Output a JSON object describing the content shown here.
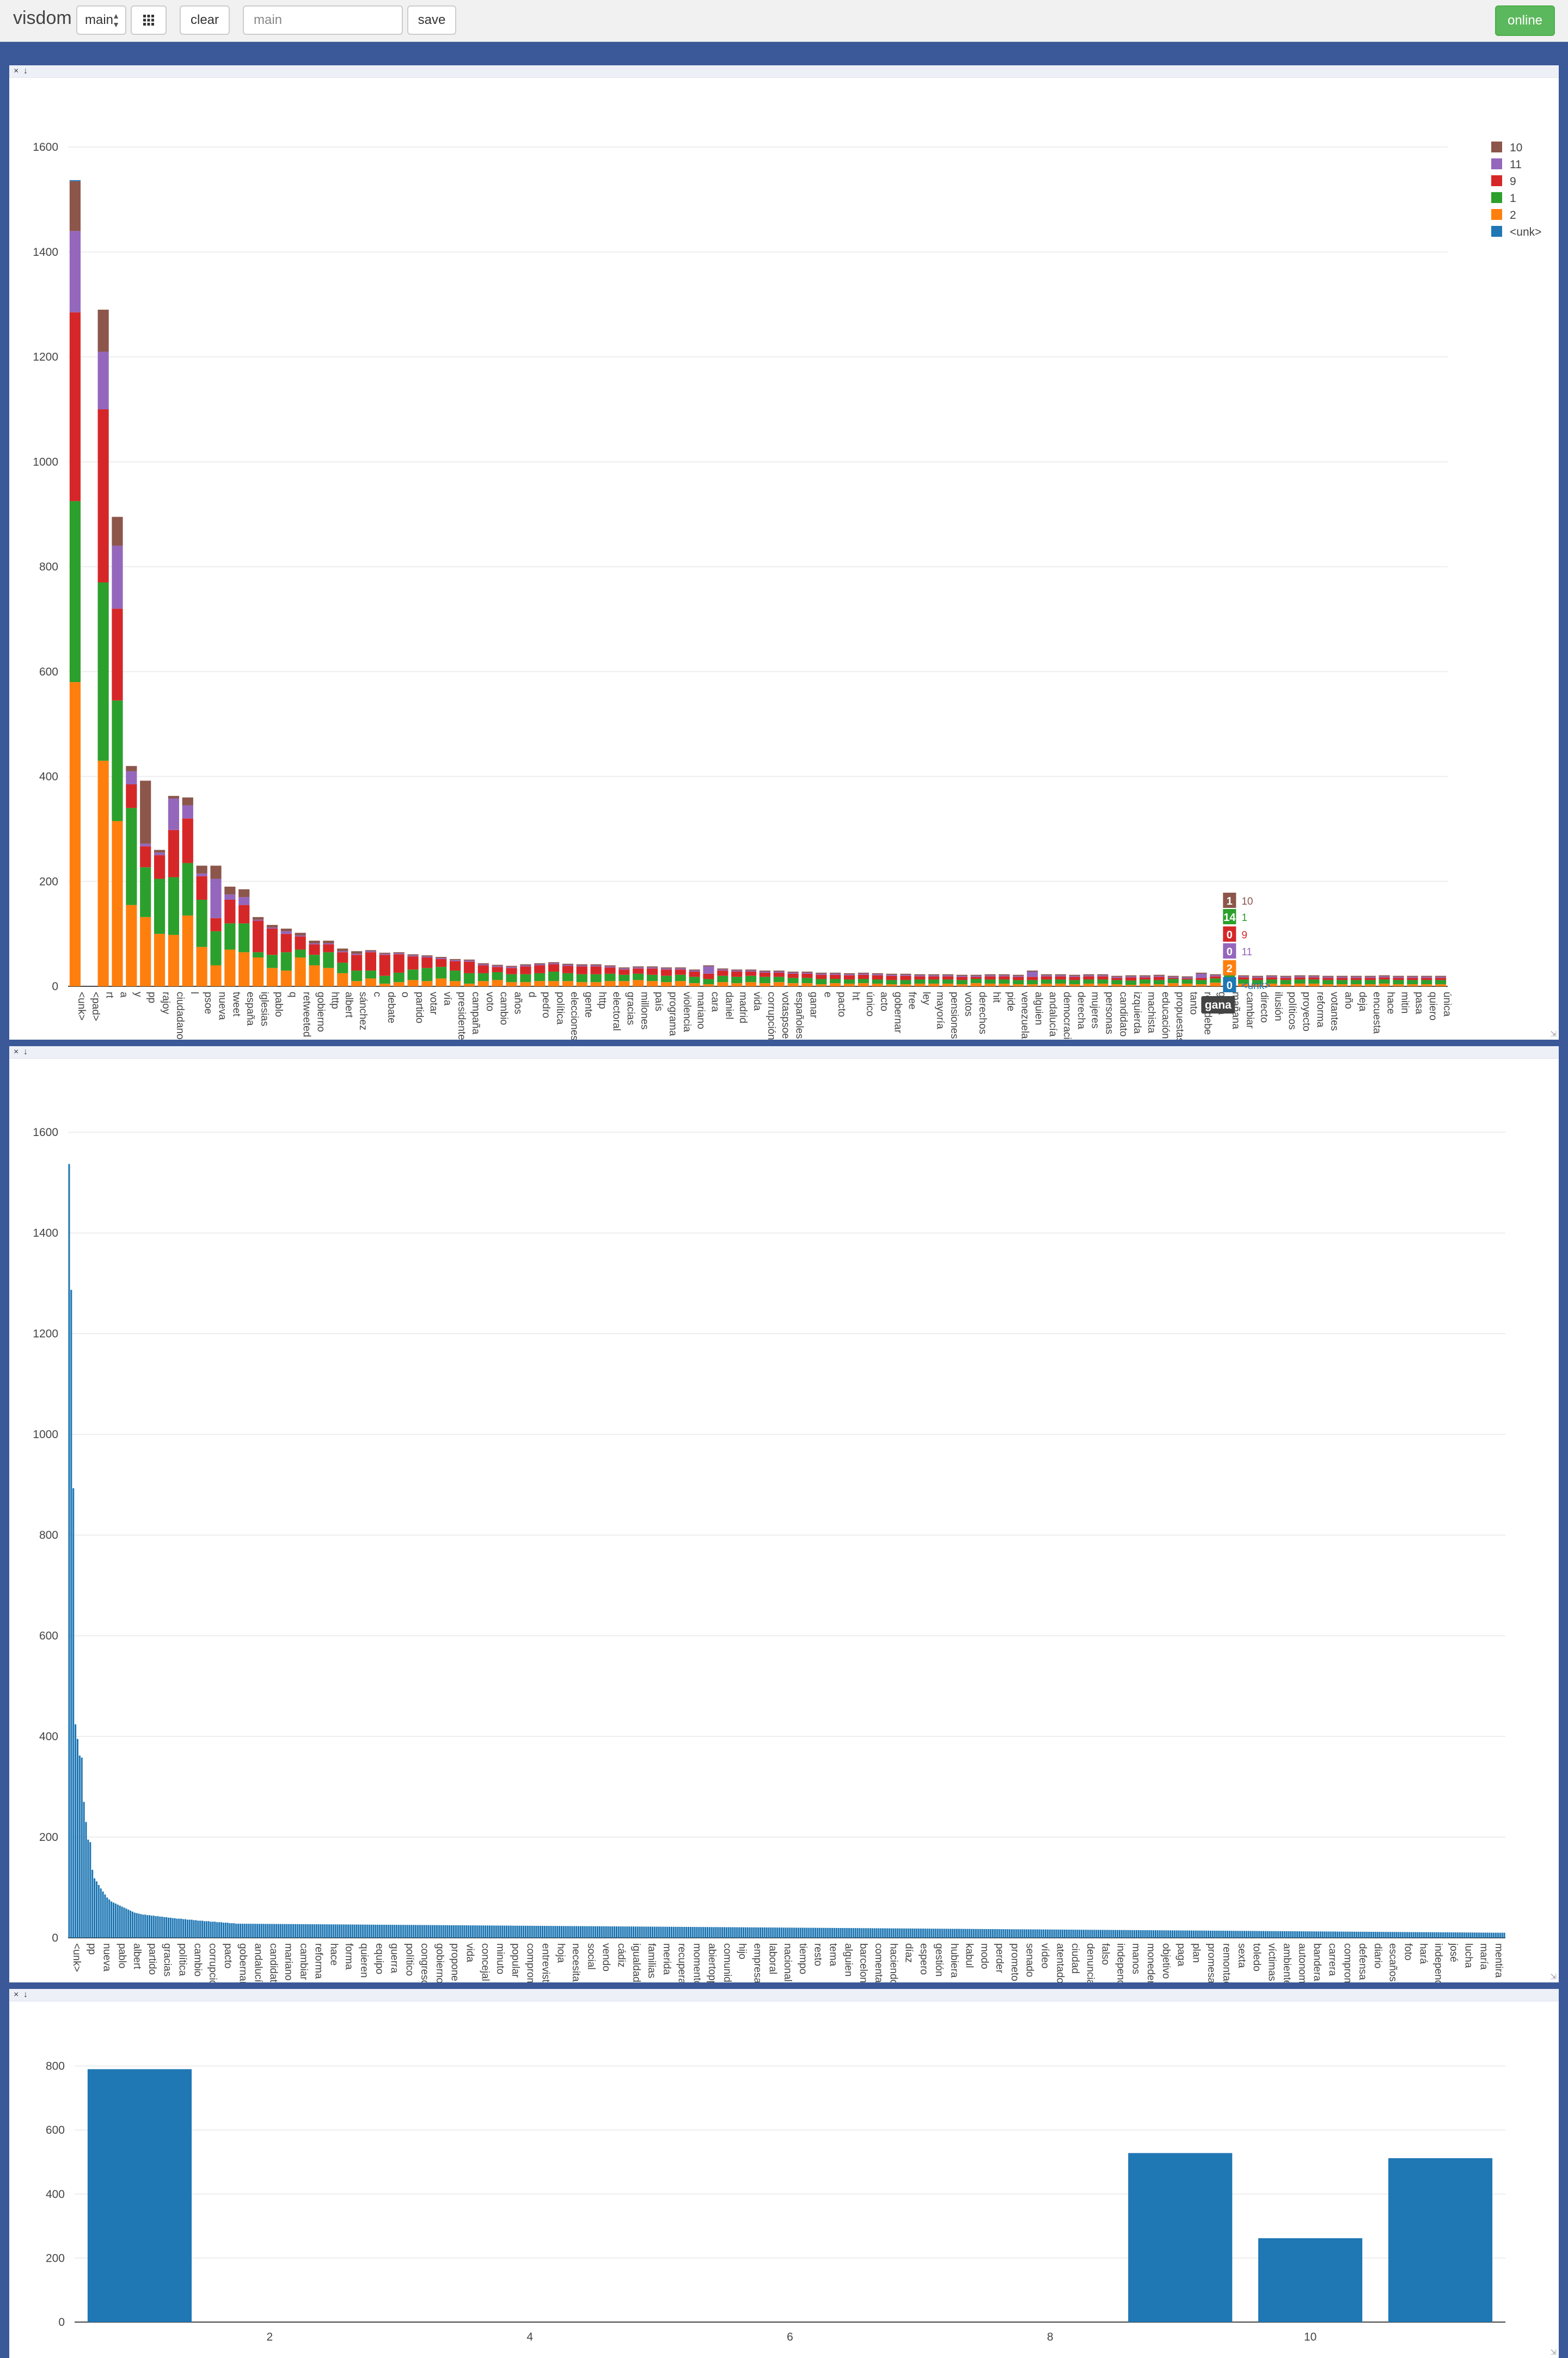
{
  "toolbar": {
    "brand": "visdom",
    "env_select": "main",
    "clear_label": "clear",
    "env_input_placeholder": "main",
    "save_label": "save",
    "status": "online",
    "icons": [
      "grid-icon",
      "close-icon",
      "download-icon",
      "resize-icon"
    ]
  },
  "pane_controls": {
    "close": "×",
    "download": "↓",
    "resize": "⇲"
  },
  "colors": {
    "page_bg": "#3b5998",
    "c2": "#ff7f0e",
    "c1": "#2ca02c",
    "c9": "#d62728",
    "c11": "#9467bd",
    "c10": "#8c564b",
    "cunk": "#1f77b4"
  },
  "chart_data": [
    {
      "type": "bar",
      "stacked": true,
      "legend_placement": "top-right",
      "grid": true,
      "ylim": [
        0,
        1650
      ],
      "yticks": [
        0,
        200,
        400,
        600,
        800,
        1000,
        1200,
        1400,
        1600
      ],
      "categories": [
        "<unk>",
        "<pad>",
        "rt",
        "a",
        "y",
        "pp",
        "rajoy",
        "ciudadanos",
        "l",
        "psoe",
        "nueva",
        "tweet",
        "españa",
        "iglesias",
        "pablo",
        "q",
        "retweeted",
        "gobierno",
        "http",
        "albert",
        "sánchez",
        "c",
        "debate",
        "o",
        "partido",
        "votar",
        "vía",
        "presidente",
        "campaña",
        "voto",
        "cambio",
        "años",
        "d",
        "pedro",
        "política",
        "elecciones",
        "gente",
        "http",
        "electoral",
        "gracias",
        "millones",
        "país",
        "programa",
        "violencia",
        "mariano",
        "cara",
        "daniel",
        "madrid",
        "vida",
        "corrupción",
        "votaspsoe",
        "españoles",
        "ganar",
        "e",
        "pacto",
        "ht",
        "único",
        "acto",
        "gobernar",
        "free",
        "ley",
        "mayoría",
        "pensiones",
        "votos",
        "derechos",
        "hit",
        "pide",
        "venezuela",
        "alguien",
        "andalucía",
        "democracia",
        "derecha",
        "mujeres",
        "personas",
        "candidato",
        "izquierda",
        "machista",
        "educación",
        "propuestas",
        "tanto",
        "rosadebe",
        "gana",
        "mañana",
        "cambiar",
        "directo",
        "ilusión",
        "políticos",
        "proyecto",
        "reforma",
        "votantes",
        "año",
        "deja",
        "encuesta",
        "hace",
        "mitin",
        "pasa",
        "quiero",
        "única"
      ],
      "series": [
        {
          "name": "2",
          "values": [
            580,
            0,
            430,
            315,
            155,
            132,
            100,
            98,
            135,
            75,
            40,
            70,
            65,
            55,
            35,
            30,
            55,
            40,
            35,
            25,
            10,
            15,
            5,
            8,
            12,
            10,
            15,
            10,
            5,
            10,
            12,
            8,
            8,
            10,
            10,
            10,
            8,
            8,
            10,
            10,
            12,
            10,
            8,
            10,
            6,
            4,
            8,
            6,
            8,
            6,
            8,
            6,
            6,
            4,
            6,
            5,
            6,
            5,
            4,
            4,
            5,
            5,
            5,
            4,
            6,
            5,
            5,
            4,
            4,
            5,
            5,
            4,
            5,
            5,
            4,
            3,
            5,
            4,
            6,
            5,
            4,
            7,
            10,
            5,
            4,
            5,
            4,
            5,
            5,
            4,
            4,
            4,
            4,
            5,
            4,
            4,
            4,
            4
          ]
        },
        {
          "name": "1",
          "values": [
            345,
            0,
            340,
            230,
            185,
            95,
            105,
            110,
            100,
            90,
            65,
            50,
            55,
            10,
            25,
            35,
            15,
            20,
            30,
            20,
            20,
            15,
            15,
            18,
            20,
            25,
            22,
            20,
            20,
            15,
            15,
            15,
            15,
            15,
            18,
            15,
            15,
            15,
            14,
            12,
            12,
            12,
            12,
            12,
            12,
            10,
            12,
            12,
            12,
            12,
            10,
            10,
            10,
            10,
            8,
            8,
            8,
            8,
            8,
            8,
            8,
            8,
            8,
            8,
            8,
            8,
            8,
            8,
            8,
            8,
            8,
            8,
            8,
            8,
            8,
            8,
            8,
            8,
            8,
            8,
            8,
            8,
            14,
            8,
            8,
            8,
            8,
            8,
            8,
            8,
            8,
            8,
            8,
            8,
            8,
            8,
            8,
            8
          ]
        },
        {
          "name": "9",
          "values": [
            360,
            0,
            330,
            175,
            45,
            40,
            45,
            90,
            85,
            45,
            25,
            45,
            35,
            60,
            50,
            35,
            25,
            20,
            15,
            20,
            30,
            35,
            40,
            35,
            25,
            20,
            15,
            18,
            22,
            15,
            10,
            12,
            15,
            15,
            14,
            14,
            15,
            15,
            12,
            10,
            10,
            12,
            12,
            10,
            10,
            10,
            10,
            10,
            8,
            8,
            8,
            8,
            8,
            8,
            8,
            8,
            8,
            8,
            8,
            8,
            6,
            6,
            6,
            6,
            4,
            6,
            6,
            6,
            6,
            6,
            6,
            6,
            6,
            6,
            4,
            6,
            4,
            6,
            2,
            2,
            4,
            4,
            0,
            4,
            4,
            4,
            4,
            4,
            4,
            4,
            4,
            4,
            4,
            4,
            4,
            4,
            4,
            4
          ]
        },
        {
          "name": "11",
          "values": [
            155,
            0,
            110,
            120,
            25,
            5,
            5,
            60,
            25,
            5,
            75,
            10,
            15,
            2,
            2,
            5,
            2,
            2,
            2,
            2,
            2,
            2,
            2,
            2,
            2,
            2,
            2,
            2,
            2,
            2,
            2,
            2,
            2,
            2,
            2,
            2,
            2,
            2,
            2,
            2,
            2,
            2,
            2,
            2,
            2,
            14,
            2,
            2,
            2,
            2,
            2,
            2,
            2,
            2,
            2,
            2,
            2,
            2,
            2,
            2,
            2,
            2,
            2,
            2,
            2,
            2,
            2,
            2,
            10,
            2,
            2,
            2,
            2,
            2,
            2,
            2,
            2,
            2,
            2,
            2,
            8,
            2,
            0,
            2,
            2,
            2,
            2,
            2,
            2,
            2,
            2,
            2,
            2,
            2,
            2,
            2,
            2,
            2
          ]
        },
        {
          "name": "10",
          "values": [
            95,
            0,
            80,
            55,
            10,
            120,
            5,
            5,
            15,
            15,
            25,
            15,
            15,
            5,
            5,
            5,
            5,
            5,
            5,
            5,
            5,
            2,
            2,
            2,
            2,
            2,
            2,
            2,
            2,
            2,
            2,
            2,
            2,
            2,
            2,
            2,
            2,
            2,
            2,
            2,
            2,
            2,
            2,
            2,
            2,
            2,
            2,
            2,
            2,
            2,
            2,
            2,
            2,
            2,
            2,
            2,
            2,
            2,
            2,
            2,
            2,
            2,
            2,
            2,
            2,
            2,
            2,
            2,
            2,
            2,
            2,
            2,
            2,
            2,
            2,
            2,
            2,
            2,
            2,
            2,
            2,
            2,
            1,
            2,
            2,
            2,
            2,
            2,
            2,
            2,
            2,
            2,
            2,
            2,
            2,
            2,
            2,
            2
          ]
        },
        {
          "name": "<unk>",
          "values": [
            2,
            0,
            0,
            0,
            0,
            0,
            0,
            0,
            0,
            0,
            0,
            0,
            0,
            0,
            0,
            0,
            0,
            0,
            0,
            0,
            0,
            0,
            0,
            0,
            0,
            0,
            0,
            0,
            0,
            0,
            0,
            0,
            0,
            0,
            0,
            0,
            0,
            0,
            0,
            0,
            0,
            0,
            0,
            0,
            0,
            0,
            0,
            0,
            0,
            0,
            0,
            0,
            0,
            0,
            0,
            0,
            0,
            0,
            0,
            0,
            0,
            0,
            0,
            0,
            0,
            0,
            0,
            0,
            0,
            0,
            0,
            0,
            0,
            0,
            0,
            0,
            0,
            0,
            0,
            0,
            0,
            0,
            0,
            0,
            0,
            0,
            0,
            0,
            0,
            0,
            0,
            0,
            0,
            0,
            0,
            0,
            0,
            0
          ]
        }
      ],
      "legend_order": [
        "10",
        "11",
        "9",
        "1",
        "2",
        "<unk>"
      ],
      "hover": {
        "category": "gana",
        "rows": [
          {
            "value": "1",
            "name": "10"
          },
          {
            "value": "14",
            "name": "1"
          },
          {
            "value": "0",
            "name": "9"
          },
          {
            "value": "0",
            "name": "11"
          },
          {
            "value": "2",
            "name": ""
          },
          {
            "value": "0",
            "name": "<unk>"
          }
        ]
      }
    },
    {
      "type": "bar",
      "grid": true,
      "ylim": [
        0,
        1650
      ],
      "yticks": [
        0,
        200,
        400,
        600,
        800,
        1000,
        1200,
        1400,
        1600
      ],
      "head_values": [
        1537,
        1287,
        893,
        424,
        395,
        362,
        358,
        270,
        230,
        195,
        190,
        135,
        118,
        112,
        105,
        98,
        92,
        86,
        80,
        76,
        72,
        70,
        68,
        66,
        64,
        62,
        60,
        58,
        56,
        54,
        52,
        50,
        49,
        48,
        47,
        46,
        46,
        45,
        45,
        44,
        44,
        43,
        43,
        42,
        42,
        41,
        41,
        40,
        40,
        39,
        39,
        38,
        38,
        38,
        37,
        37,
        36,
        36,
        36,
        35,
        35,
        34,
        34,
        34,
        33,
        33,
        33,
        32,
        32,
        32,
        31,
        31,
        31,
        30,
        30,
        30,
        29,
        29,
        29,
        28
      ],
      "tail_length": 600,
      "tail_start": 28,
      "tail_end": 10,
      "tick_labels": [
        "<unk>",
        "pp",
        "nueva",
        "pablo",
        "albert",
        "partido",
        "gracias",
        "política",
        "cambio",
        "corrupción",
        "pacto",
        "gobernar",
        "andalucía",
        "candidato",
        "mariano",
        "cambiar",
        "reforma",
        "hace",
        "forma",
        "quieren",
        "equipo",
        "guerra",
        "político",
        "congreso",
        "gobierno",
        "propone",
        "vida",
        "concejal",
        "minuto",
        "popular",
        "compromiso",
        "entrevista",
        "hoja",
        "necesita",
        "social",
        "vendo",
        "cádiz",
        "igualdad",
        "familias",
        "merida",
        "recuperar",
        "momento",
        "abiertopp",
        "comunidad",
        "hijo",
        "empresas",
        "laboral",
        "nacional",
        "tiempo",
        "resto",
        "tema",
        "alguien",
        "barcelona",
        "comentario",
        "haciendo",
        "díaz",
        "espero",
        "gestión",
        "hubiera",
        "kabul",
        "modo",
        "perder",
        "prometo",
        "senado",
        "vídeo",
        "atentado",
        "ciudad",
        "denuncia",
        "falso",
        "independencia",
        "manos",
        "monedero",
        "objetivo",
        "paga",
        "plan",
        "promesa",
        "remontada",
        "sexta",
        "toledo",
        "víctimas",
        "ambiente",
        "autonomía",
        "bandera",
        "carrera",
        "compromiso",
        "defensa",
        "diario",
        "escaños",
        "foto",
        "hará",
        "independentista",
        "josé",
        "lucha",
        "maría",
        "mentira"
      ]
    },
    {
      "type": "bar",
      "grid": true,
      "xlim": [
        0.5,
        11.5
      ],
      "xticks": [
        2,
        4,
        6,
        8,
        10
      ],
      "ylim": [
        0,
        840
      ],
      "yticks": [
        0,
        200,
        400,
        600,
        800
      ],
      "x": [
        1,
        9,
        10,
        11
      ],
      "values": [
        790,
        528,
        262,
        512
      ]
    }
  ]
}
